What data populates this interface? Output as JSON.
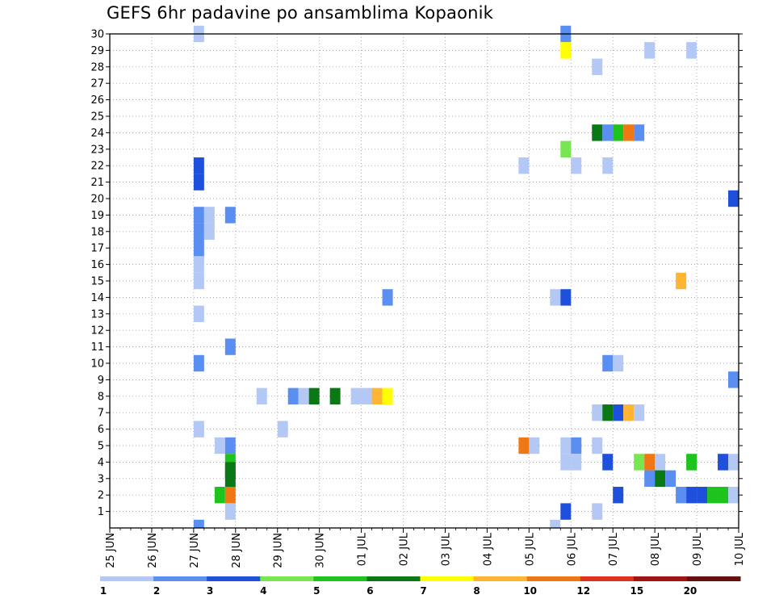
{
  "chart_data": {
    "type": "heatmap",
    "title": "GEFS 6hr padavine po ansamblima Kopaonik",
    "xlabel": "",
    "ylabel": "",
    "x_tick_labels": [
      "25 JUN",
      "26 JUN",
      "27 JUN",
      "28 JUN",
      "29 JUN",
      "30 JUN",
      "01 JUL",
      "02 JUL",
      "03 JUL",
      "04 JUL",
      "05 JUL",
      "06 JUL",
      "07 JUL",
      "08 JUL",
      "09 JUL",
      "10 JUL"
    ],
    "y_tick_labels": [
      "1",
      "2",
      "3",
      "4",
      "5",
      "6",
      "7",
      "8",
      "9",
      "10",
      "11",
      "12",
      "13",
      "14",
      "15",
      "16",
      "17",
      "18",
      "19",
      "20",
      "21",
      "22",
      "23",
      "24",
      "25",
      "26",
      "27",
      "28",
      "29",
      "30"
    ],
    "ylim": [
      0,
      30
    ],
    "x_unit": "6-hour forecast step (4 per day), starting 25 JUN",
    "grid": true,
    "colorbar": {
      "labels": [
        "1",
        "2",
        "3",
        "4",
        "5",
        "6",
        "7",
        "8",
        "10",
        "12",
        "15",
        "20"
      ],
      "colors": [
        "#b4c8f5",
        "#5a8ef0",
        "#1e50dc",
        "#78e650",
        "#1ec31e",
        "#0a7814",
        "#ffff00",
        "#ffb432",
        "#f07814",
        "#dc321e",
        "#a01414",
        "#641010"
      ]
    },
    "cells": [
      {
        "x": 8.5,
        "y": 30,
        "c": 0
      },
      {
        "x": 8.5,
        "y": 22,
        "c": 2
      },
      {
        "x": 8.5,
        "y": 21,
        "c": 2
      },
      {
        "x": 8.5,
        "y": 19,
        "c": 1
      },
      {
        "x": 8.5,
        "y": 18,
        "c": 1
      },
      {
        "x": 8.5,
        "y": 17,
        "c": 1
      },
      {
        "x": 8.5,
        "y": 16,
        "c": 0
      },
      {
        "x": 8.5,
        "y": 15,
        "c": 0
      },
      {
        "x": 9.5,
        "y": 19,
        "c": 0
      },
      {
        "x": 9.5,
        "y": 18,
        "c": 0
      },
      {
        "x": 8.5,
        "y": 13,
        "c": 0
      },
      {
        "x": 8.5,
        "y": 10,
        "c": 1
      },
      {
        "x": 8.5,
        "y": 6,
        "c": 0
      },
      {
        "x": 8.5,
        "y": 0,
        "c": 1
      },
      {
        "x": 11.5,
        "y": 19,
        "c": 1
      },
      {
        "x": 11.5,
        "y": 11,
        "c": 1
      },
      {
        "x": 10.5,
        "y": 5,
        "c": 0
      },
      {
        "x": 11.5,
        "y": 5,
        "c": 1
      },
      {
        "x": 11.5,
        "y": 4,
        "c": 4
      },
      {
        "x": 11.5,
        "y": 3,
        "c": 5
      },
      {
        "x": 11.5,
        "y": 3.5,
        "c": 5
      },
      {
        "x": 10.5,
        "y": 2,
        "c": 4
      },
      {
        "x": 11.5,
        "y": 2,
        "c": 8
      },
      {
        "x": 11.5,
        "y": 1,
        "c": 0
      },
      {
        "x": 14.5,
        "y": 8,
        "c": 0
      },
      {
        "x": 16.5,
        "y": 6,
        "c": 0
      },
      {
        "x": 17.5,
        "y": 8,
        "c": 1
      },
      {
        "x": 18.5,
        "y": 8,
        "c": 0
      },
      {
        "x": 19.5,
        "y": 8,
        "c": 5
      },
      {
        "x": 21.5,
        "y": 8,
        "c": 5
      },
      {
        "x": 23.5,
        "y": 8,
        "c": 0
      },
      {
        "x": 24.5,
        "y": 8,
        "c": 0
      },
      {
        "x": 25.5,
        "y": 8,
        "c": 7
      },
      {
        "x": 26.5,
        "y": 8,
        "c": 6
      },
      {
        "x": 26.5,
        "y": 14,
        "c": 1
      },
      {
        "x": 39.5,
        "y": 22,
        "c": 0
      },
      {
        "x": 39.5,
        "y": 5,
        "c": 8
      },
      {
        "x": 40.5,
        "y": 5,
        "c": 0
      },
      {
        "x": 42.5,
        "y": 0,
        "c": 0
      },
      {
        "x": 43.5,
        "y": 30,
        "c": 1
      },
      {
        "x": 43.5,
        "y": 29,
        "c": 6
      },
      {
        "x": 43.5,
        "y": 23,
        "c": 3
      },
      {
        "x": 42.5,
        "y": 14,
        "c": 0
      },
      {
        "x": 43.5,
        "y": 14,
        "c": 2
      },
      {
        "x": 43.5,
        "y": 5,
        "c": 0
      },
      {
        "x": 44.5,
        "y": 5,
        "c": 1
      },
      {
        "x": 43.5,
        "y": 4,
        "c": 0
      },
      {
        "x": 44.5,
        "y": 4,
        "c": 0
      },
      {
        "x": 43.5,
        "y": 1,
        "c": 2
      },
      {
        "x": 44.5,
        "y": 22,
        "c": 0
      },
      {
        "x": 46.5,
        "y": 28,
        "c": 0
      },
      {
        "x": 46.5,
        "y": 24,
        "c": 5
      },
      {
        "x": 47.5,
        "y": 24,
        "c": 1
      },
      {
        "x": 48.5,
        "y": 24,
        "c": 4
      },
      {
        "x": 49.5,
        "y": 24,
        "c": 8
      },
      {
        "x": 50.5,
        "y": 24,
        "c": 1
      },
      {
        "x": 47.5,
        "y": 22,
        "c": 0
      },
      {
        "x": 47.5,
        "y": 10,
        "c": 1
      },
      {
        "x": 48.5,
        "y": 10,
        "c": 0
      },
      {
        "x": 46.5,
        "y": 7,
        "c": 0
      },
      {
        "x": 47.5,
        "y": 7,
        "c": 5
      },
      {
        "x": 48.5,
        "y": 7,
        "c": 2
      },
      {
        "x": 49.5,
        "y": 7,
        "c": 7
      },
      {
        "x": 50.5,
        "y": 7,
        "c": 0
      },
      {
        "x": 46.5,
        "y": 5,
        "c": 0
      },
      {
        "x": 47.5,
        "y": 4,
        "c": 2
      },
      {
        "x": 48.5,
        "y": 2,
        "c": 2
      },
      {
        "x": 46.5,
        "y": 1,
        "c": 0
      },
      {
        "x": 51.5,
        "y": 29,
        "c": 0
      },
      {
        "x": 50.5,
        "y": 4,
        "c": 3
      },
      {
        "x": 51.5,
        "y": 4,
        "c": 8
      },
      {
        "x": 52.5,
        "y": 4,
        "c": 0
      },
      {
        "x": 51.5,
        "y": 3,
        "c": 1
      },
      {
        "x": 52.5,
        "y": 3,
        "c": 5
      },
      {
        "x": 53.5,
        "y": 3,
        "c": 1
      },
      {
        "x": 55.5,
        "y": 29,
        "c": 0
      },
      {
        "x": 54.5,
        "y": 15,
        "c": 7
      },
      {
        "x": 55.5,
        "y": 4,
        "c": 4
      },
      {
        "x": 54.5,
        "y": 2,
        "c": 1
      },
      {
        "x": 55.5,
        "y": 2,
        "c": 2
      },
      {
        "x": 56.5,
        "y": 2,
        "c": 2
      },
      {
        "x": 57.5,
        "y": 2,
        "c": 4
      },
      {
        "x": 58.5,
        "y": 2,
        "c": 4
      },
      {
        "x": 59.5,
        "y": 2,
        "c": 0
      },
      {
        "x": 58.5,
        "y": 4,
        "c": 2
      },
      {
        "x": 59.5,
        "y": 4,
        "c": 0
      },
      {
        "x": 59.5,
        "y": 20,
        "c": 2
      },
      {
        "x": 59.5,
        "y": 9,
        "c": 1
      }
    ]
  }
}
